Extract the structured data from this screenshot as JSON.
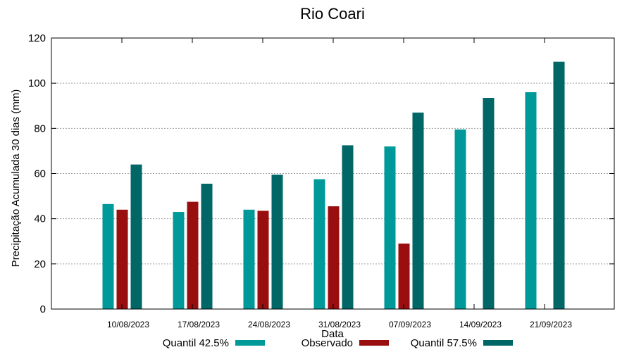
{
  "chart_data": {
    "type": "bar",
    "title": "Rio Coari",
    "xlabel": "Data",
    "ylabel": "Precipitação Acumulada 30 dias (mm)",
    "ylim": [
      0,
      120
    ],
    "yticks": [
      0,
      20,
      40,
      60,
      80,
      100,
      120
    ],
    "grid": true,
    "legend_position": "bottom",
    "categories": [
      "10/08/2023",
      "17/08/2023",
      "24/08/2023",
      "31/08/2023",
      "07/09/2023",
      "14/09/2023",
      "21/09/2023"
    ],
    "series": [
      {
        "name": "Quantil 42.5%",
        "color": "#009999",
        "values": [
          46.5,
          43,
          44,
          57.5,
          72,
          79.5,
          96
        ]
      },
      {
        "name": "Observado",
        "color": "#990f0f",
        "values": [
          44,
          47.5,
          43.5,
          45.5,
          29,
          null,
          null
        ]
      },
      {
        "name": "Quantil 57.5%",
        "color": "#006666",
        "values": [
          64,
          55.5,
          59.5,
          72.5,
          87,
          93.5,
          109.5
        ]
      }
    ]
  }
}
